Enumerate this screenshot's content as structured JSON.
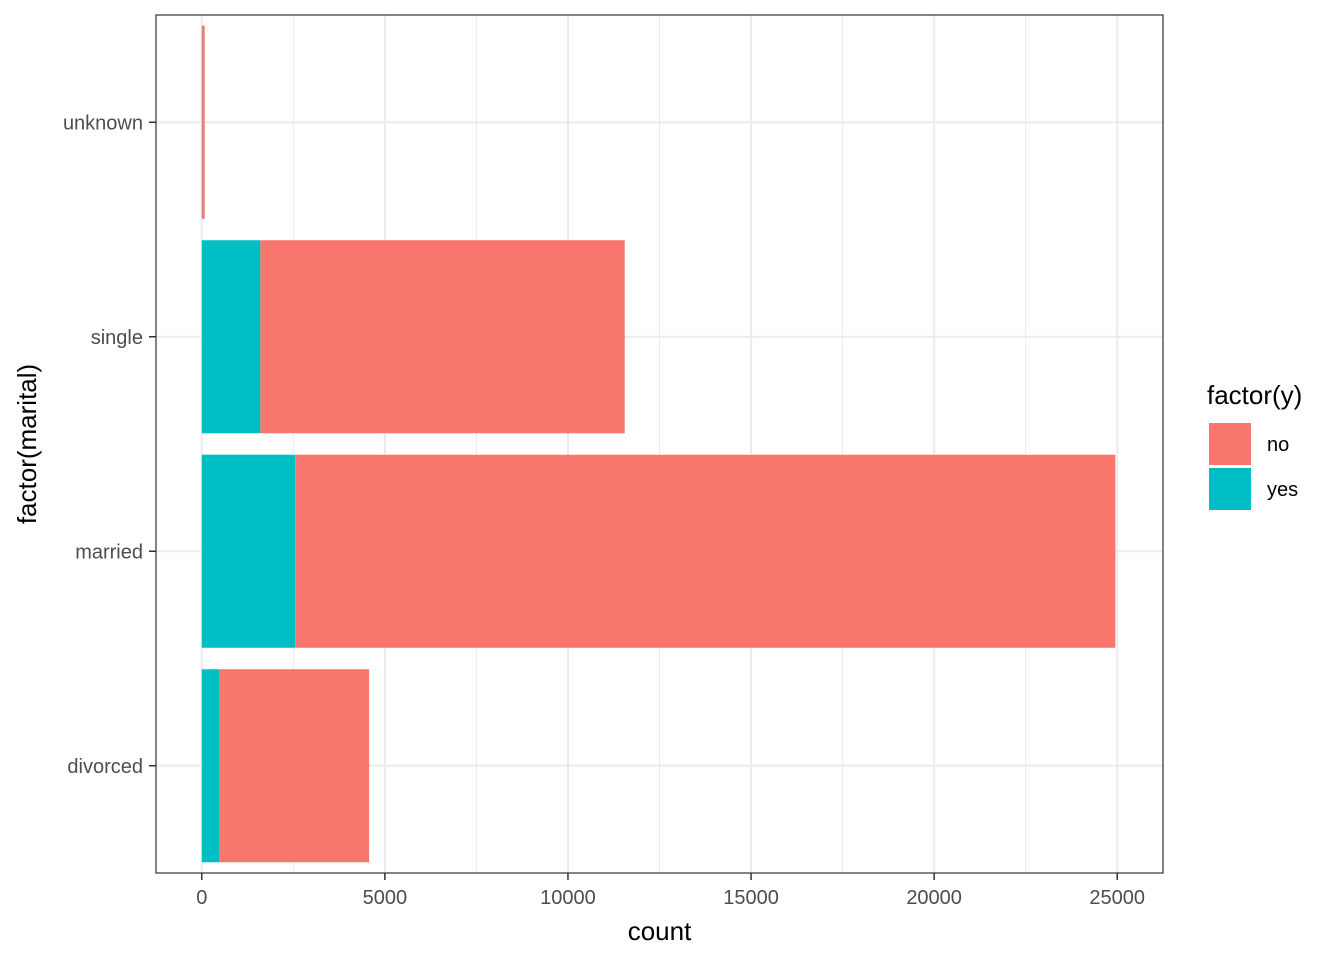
{
  "chart_data": {
    "type": "bar",
    "orientation": "horizontal",
    "stacked": true,
    "categories": [
      "divorced",
      "married",
      "single",
      "unknown"
    ],
    "series": [
      {
        "name": "no",
        "values": [
          4100,
          22400,
          9950,
          68
        ],
        "color": "#F8766D"
      },
      {
        "name": "yes",
        "values": [
          470,
          2550,
          1600,
          12
        ],
        "color": "#00BFC4"
      }
    ],
    "xlabel": "count",
    "ylabel": "factor(marital)",
    "xlim": [
      -1250,
      26250
    ],
    "xticks": [
      0,
      5000,
      10000,
      15000,
      20000,
      25000
    ],
    "xtick_labels": [
      "0",
      "5000",
      "10000",
      "15000",
      "20000",
      "25000"
    ],
    "legend": {
      "title": "factor(y)",
      "position": "right",
      "entries": [
        "no",
        "yes"
      ]
    },
    "grid": true,
    "theme": "bw"
  }
}
